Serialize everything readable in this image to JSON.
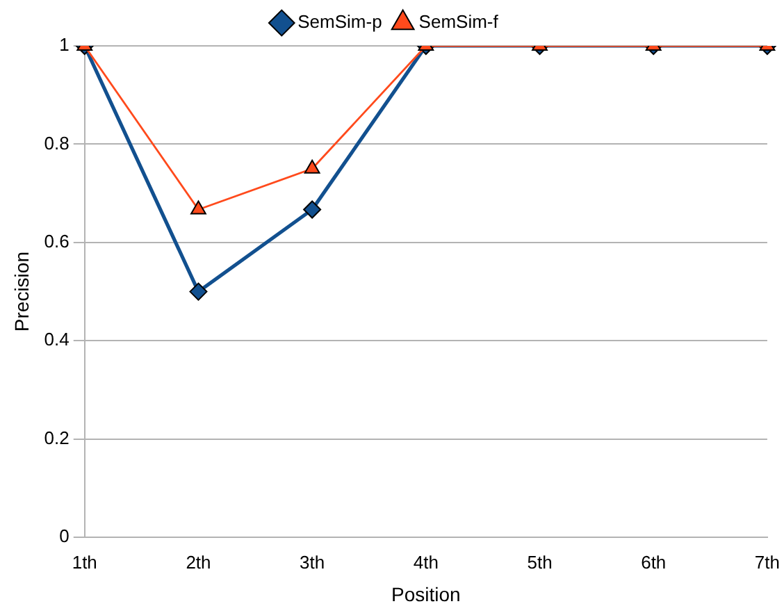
{
  "chart_data": {
    "type": "line",
    "xlabel": "Position",
    "ylabel": "Precision",
    "categories": [
      "1th",
      "2th",
      "3th",
      "4th",
      "5th",
      "6th",
      "7th"
    ],
    "series": [
      {
        "name": "SemSim-p",
        "color": "#12508f",
        "marker": "diamond",
        "values": [
          1,
          0.5,
          0.667,
          1,
          1,
          1,
          1
        ]
      },
      {
        "name": "SemSim-f",
        "color": "#ff4a1c",
        "marker": "triangle",
        "values": [
          1,
          0.667,
          0.75,
          1,
          1,
          1,
          1
        ]
      }
    ],
    "ylim": [
      0,
      1
    ],
    "yticks": [
      0,
      0.2,
      0.4,
      0.6,
      0.8,
      1
    ],
    "grid": "y",
    "legend": "top",
    "line_style": "solid"
  }
}
